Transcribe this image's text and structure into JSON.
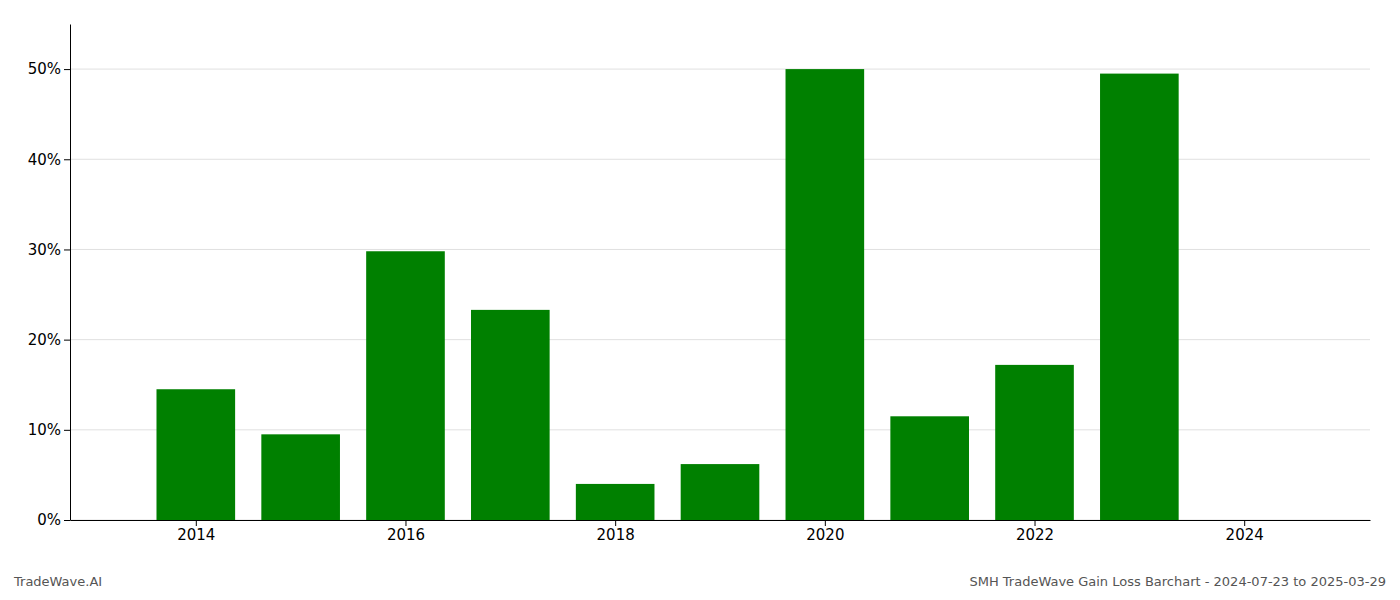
{
  "chart_data": {
    "type": "bar",
    "x": [
      2014,
      2015,
      2016,
      2017,
      2018,
      2019,
      2020,
      2021,
      2022,
      2023
    ],
    "values": [
      14.5,
      9.5,
      29.8,
      23.3,
      4.0,
      6.2,
      50.0,
      11.5,
      17.2,
      49.5
    ],
    "color": "#008000",
    "xlim": [
      2012.8,
      2025.2
    ],
    "xticks": [
      2014,
      2016,
      2018,
      2020,
      2022,
      2024
    ],
    "ylim": [
      0,
      55
    ],
    "yticks": [
      {
        "value": 0,
        "label": "0%"
      },
      {
        "value": 10,
        "label": "10%"
      },
      {
        "value": 20,
        "label": "20%"
      },
      {
        "value": 30,
        "label": "30%"
      },
      {
        "value": 40,
        "label": "40%"
      },
      {
        "value": 50,
        "label": "50%"
      }
    ],
    "grid": true,
    "annotations": [
      "TradeWave.AI",
      "SMH TradeWave Gain Loss Barchart - 2024-07-23 to 2025-03-29"
    ]
  }
}
